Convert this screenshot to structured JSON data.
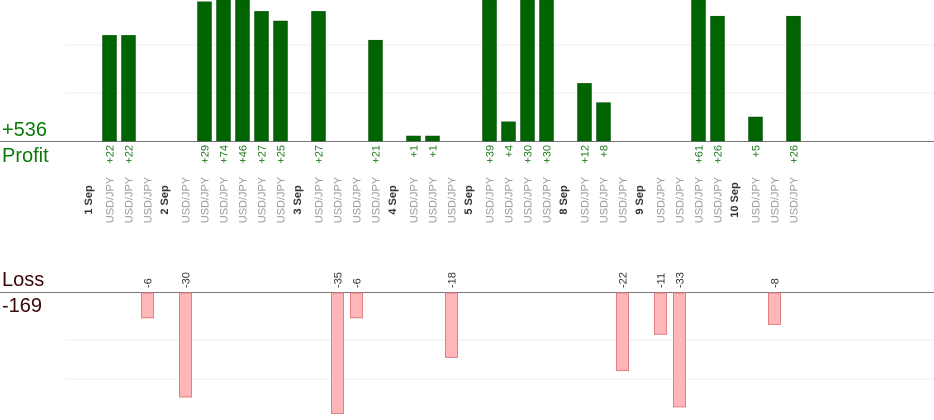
{
  "chart_data": {
    "type": "bar",
    "profit": {
      "total": "+536",
      "label": "Profit",
      "color": "#006400",
      "label_color": "#0a7a0a"
    },
    "loss": {
      "label": "Loss",
      "total": "-169",
      "color": "#ffb6b8",
      "label_color": "#3a0a0a"
    },
    "date_groups": [
      {
        "date": "1 Sep",
        "trades": [
          {
            "symbol": "USD/JPY",
            "profit": 22
          },
          {
            "symbol": "USD/JPY",
            "profit": 22
          },
          {
            "symbol": "USD/JPY",
            "loss": -6
          }
        ]
      },
      {
        "date": "2 Sep",
        "trades": [
          {
            "symbol": "USD/JPY",
            "loss": -30
          },
          {
            "symbol": "USD/JPY",
            "profit": 29
          },
          {
            "symbol": "USD/JPY",
            "profit": 74
          },
          {
            "symbol": "USD/JPY",
            "profit": 46
          },
          {
            "symbol": "USD/JPY",
            "profit": 27
          },
          {
            "symbol": "USD/JPY",
            "profit": 25
          }
        ]
      },
      {
        "date": "3 Sep",
        "trades": [
          {
            "symbol": "USD/JPY",
            "profit": 27
          },
          {
            "symbol": "USD/JPY",
            "loss": -35
          },
          {
            "symbol": "USD/JPY",
            "loss": -6
          },
          {
            "symbol": "USD/JPY",
            "profit": 21
          }
        ]
      },
      {
        "date": "4 Sep",
        "trades": [
          {
            "symbol": "USD/JPY",
            "profit": 1
          },
          {
            "symbol": "USD/JPY",
            "profit": 1
          },
          {
            "symbol": "USD/JPY",
            "loss": -18
          }
        ]
      },
      {
        "date": "5 Sep",
        "trades": [
          {
            "symbol": "USD/JPY",
            "profit": 39
          },
          {
            "symbol": "USD/JPY",
            "profit": 4
          },
          {
            "symbol": "USD/JPY",
            "profit": 30
          },
          {
            "symbol": "USD/JPY",
            "profit": 30
          }
        ]
      },
      {
        "date": "8 Sep",
        "trades": [
          {
            "symbol": "USD/JPY",
            "profit": 12
          },
          {
            "symbol": "USD/JPY",
            "profit": 8
          },
          {
            "symbol": "USD/JPY",
            "loss": -22
          }
        ]
      },
      {
        "date": "9 Sep",
        "trades": [
          {
            "symbol": "USD/JPY",
            "loss": -11
          },
          {
            "symbol": "USD/JPY",
            "loss": -33
          },
          {
            "symbol": "USD/JPY",
            "profit": 61
          },
          {
            "symbol": "USD/JPY",
            "profit": 26
          }
        ]
      },
      {
        "date": "10 Sep",
        "trades": [
          {
            "symbol": "USD/JPY",
            "profit": 5
          },
          {
            "symbol": "USD/JPY",
            "loss": -8
          },
          {
            "symbol": "USD/JPY",
            "profit": 26
          }
        ]
      }
    ],
    "profit_axis_max": 30,
    "loss_axis_max": 24,
    "grid": true
  }
}
